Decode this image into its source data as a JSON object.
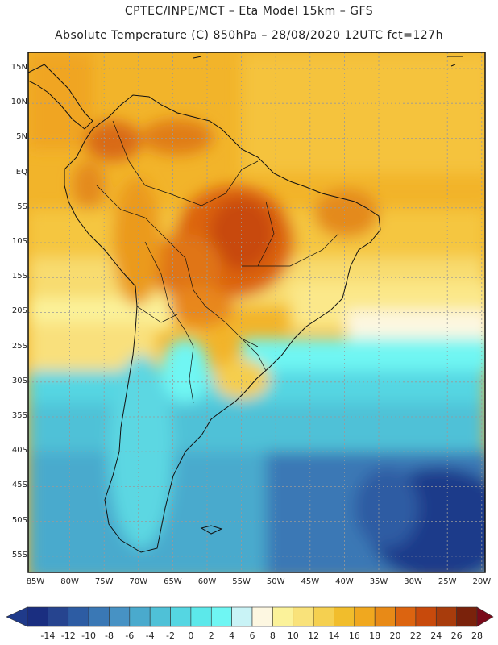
{
  "title": {
    "line1": "CPTEC/INPE/MCT –  Eta Model 15km – GFS",
    "line2": "Absolute Temperature (C) 850hPa – 28/08/2020 12UTC fct=127h"
  },
  "map": {
    "lat_labels": [
      "15N",
      "10N",
      "5N",
      "EQ",
      "5S",
      "10S",
      "15S",
      "20S",
      "25S",
      "30S",
      "35S",
      "40S",
      "45S",
      "50S",
      "55S"
    ],
    "lon_labels": [
      "85W",
      "80W",
      "75W",
      "70W",
      "65W",
      "60W",
      "55W",
      "50W",
      "45W",
      "40W",
      "35W",
      "30W",
      "25W",
      "20W"
    ]
  },
  "colorbar": {
    "labels": [
      "-14",
      "-12",
      "-10",
      "-8",
      "-6",
      "-4",
      "-2",
      "0",
      "2",
      "4",
      "6",
      "8",
      "10",
      "12",
      "14",
      "16",
      "18",
      "20",
      "22",
      "24",
      "26",
      "28"
    ],
    "colors": [
      "#1a2e80",
      "#26448f",
      "#2d5ca3",
      "#3a78b5",
      "#4792c4",
      "#4aaacd",
      "#4fc1d7",
      "#55d6e2",
      "#5ce8ea",
      "#6ff6f3",
      "#c9f3f6",
      "#fdf7e1",
      "#fbf29a",
      "#f9e27a",
      "#f5d050",
      "#f1bd2c",
      "#f0a81f",
      "#e88a17",
      "#dc6410",
      "#c84a0c",
      "#a83c0c",
      "#7a220b"
    ],
    "low_color": "#1f3a8a",
    "high_color": "#7a0a1a"
  }
}
